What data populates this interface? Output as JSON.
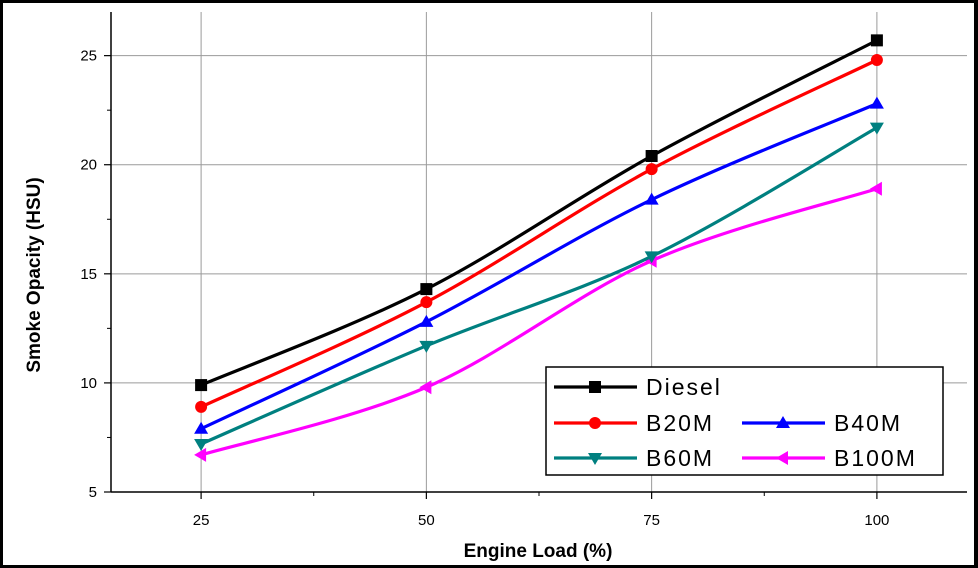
{
  "chart_data": {
    "type": "line",
    "xlabel": "Engine Load (%)",
    "ylabel": "Smoke Opacity (HSU)",
    "x": [
      25,
      50,
      75,
      100
    ],
    "xlim": [
      15,
      110
    ],
    "ylim": [
      5,
      27
    ],
    "xticks": [
      25,
      50,
      75,
      100
    ],
    "yticks": [
      5,
      10,
      15,
      20,
      25
    ],
    "grid": true,
    "legend_position": "bottom-right",
    "series": [
      {
        "name": "Diesel",
        "values": [
          9.9,
          14.3,
          20.4,
          25.7
        ],
        "color": "#000000",
        "marker": "square"
      },
      {
        "name": "B20M",
        "values": [
          8.9,
          13.7,
          19.8,
          24.8
        ],
        "color": "#ff0000",
        "marker": "circle"
      },
      {
        "name": "B40M",
        "values": [
          7.9,
          12.8,
          18.4,
          22.8
        ],
        "color": "#0000ff",
        "marker": "triangle-up"
      },
      {
        "name": "B60M",
        "values": [
          7.2,
          11.7,
          15.8,
          21.7
        ],
        "color": "#008080",
        "marker": "triangle-down"
      },
      {
        "name": "B100M",
        "values": [
          6.7,
          9.8,
          15.6,
          18.9
        ],
        "color": "#ff00ff",
        "marker": "triangle-left"
      }
    ]
  }
}
